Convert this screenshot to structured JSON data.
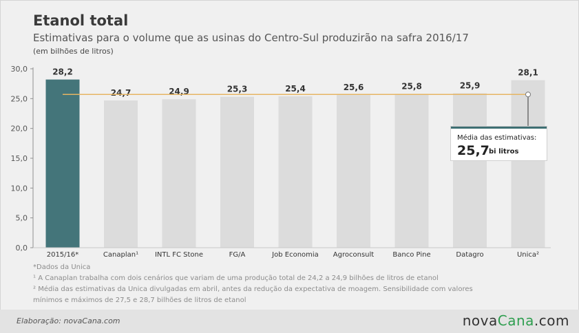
{
  "header": {
    "title": "Etanol total",
    "subtitle": "Estimativas para o volume que as usinas do Centro-Sul produzirão na safra 2016/17",
    "unit_note": "(em bilhões de litros)"
  },
  "chart_data": {
    "type": "bar",
    "categories": [
      "2015/16*",
      "Canaplan¹",
      "INTL FC Stone",
      "FG/A",
      "Job Economia",
      "Agroconsult",
      "Banco Pine",
      "Datagro",
      "Unica²"
    ],
    "values": [
      28.2,
      24.7,
      24.9,
      25.3,
      25.4,
      25.6,
      25.8,
      25.9,
      28.1
    ],
    "value_labels": [
      "28,2",
      "24,7",
      "24,9",
      "25,3",
      "25,4",
      "25,6",
      "25,8",
      "25,9",
      "28,1"
    ],
    "ylim": [
      0,
      30
    ],
    "yticks": [
      0,
      5,
      10,
      15,
      20,
      25,
      30
    ],
    "ytick_labels": [
      "0,0",
      "5,0",
      "10,0",
      "15,0",
      "20,0",
      "25,0",
      "30,0"
    ],
    "average": 25.7,
    "average_label": "Média das estimativas:",
    "average_value_label": "25,7",
    "average_unit": "bi litros",
    "colors": {
      "highlight_bar": "#44757a",
      "bar": "#dcdcdc",
      "average_line": "#e6b562",
      "axis": "#8f8f8f"
    },
    "grid": false,
    "legend": "none"
  },
  "notes": [
    "*Dados da Unica",
    "¹ A Canaplan trabalha com dois cenários que variam de uma produção total de 24,2 a 24,9 bilhões de litros de etanol",
    "² Média das estimativas da Unica divulgadas em abril, antes da redução da expectativa de moagem. Sensibilidade com valores",
    "mínimos e máximos de 27,5 e 28,7 bilhões de litros de etanol"
  ],
  "footer": {
    "credit": "Elaboração: novaCana.com",
    "logo_part1": "nova",
    "logo_part2": "Cana",
    "logo_part3": ".com"
  }
}
